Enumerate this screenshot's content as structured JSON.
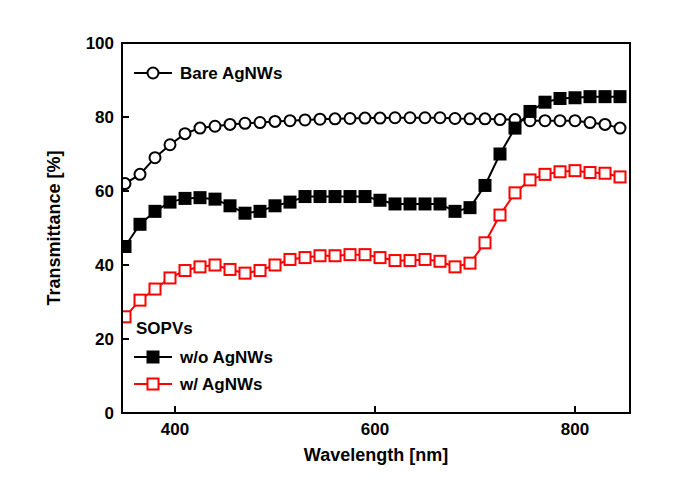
{
  "chart_data": {
    "type": "line",
    "x_label": "Wavelength [nm]",
    "y_label": "Transmittance [%]",
    "annotations": [
      "SOPVs"
    ],
    "x": [
      350,
      365,
      380,
      395,
      410,
      425,
      440,
      455,
      470,
      485,
      500,
      515,
      530,
      545,
      560,
      575,
      590,
      605,
      620,
      635,
      650,
      665,
      680,
      695,
      710,
      725,
      740,
      755,
      770,
      785,
      800,
      815,
      830,
      845
    ],
    "series": [
      {
        "name": "Bare AgNWs",
        "color": "#000000",
        "marker": "open-circle",
        "values": [
          62,
          64.5,
          69,
          72.5,
          75.5,
          77,
          77.5,
          78,
          78.3,
          78.5,
          78.8,
          79,
          79.2,
          79.4,
          79.5,
          79.6,
          79.7,
          79.7,
          79.8,
          79.8,
          79.8,
          79.8,
          79.6,
          79.5,
          79.5,
          79.3,
          79.3,
          79,
          79,
          79,
          79,
          78.5,
          78,
          77
        ]
      },
      {
        "name": "w/o AgNWs",
        "color": "#000000",
        "marker": "filled-square",
        "values": [
          45,
          51,
          54.5,
          57,
          58,
          58.2,
          57.8,
          56,
          54,
          54.5,
          56,
          57,
          58.5,
          58.5,
          58.5,
          58.5,
          58.5,
          57.5,
          56.5,
          56.5,
          56.5,
          56.5,
          54.5,
          55.5,
          61.5,
          70,
          77,
          81.5,
          84,
          85,
          85.2,
          85.5,
          85.5,
          85.5
        ]
      },
      {
        "name": "w/ AgNWs",
        "color": "#ff0000",
        "marker": "open-square",
        "values": [
          26,
          30.5,
          33.5,
          36.5,
          38.5,
          39.5,
          40,
          38.8,
          37.8,
          38.5,
          40,
          41.5,
          42,
          42.5,
          42.5,
          42.8,
          42.8,
          42,
          41.2,
          41.2,
          41.5,
          41,
          39.5,
          40.5,
          46,
          53.5,
          59.5,
          63,
          64.5,
          65.2,
          65.5,
          65,
          64.8,
          63.8
        ]
      }
    ],
    "xlim": [
      347,
      855
    ],
    "xticks": [
      400,
      600,
      800
    ],
    "ylim": [
      0,
      100
    ],
    "yticks": [
      0,
      20,
      40,
      60,
      80,
      100
    ],
    "legend": "upper left",
    "grid": false
  }
}
